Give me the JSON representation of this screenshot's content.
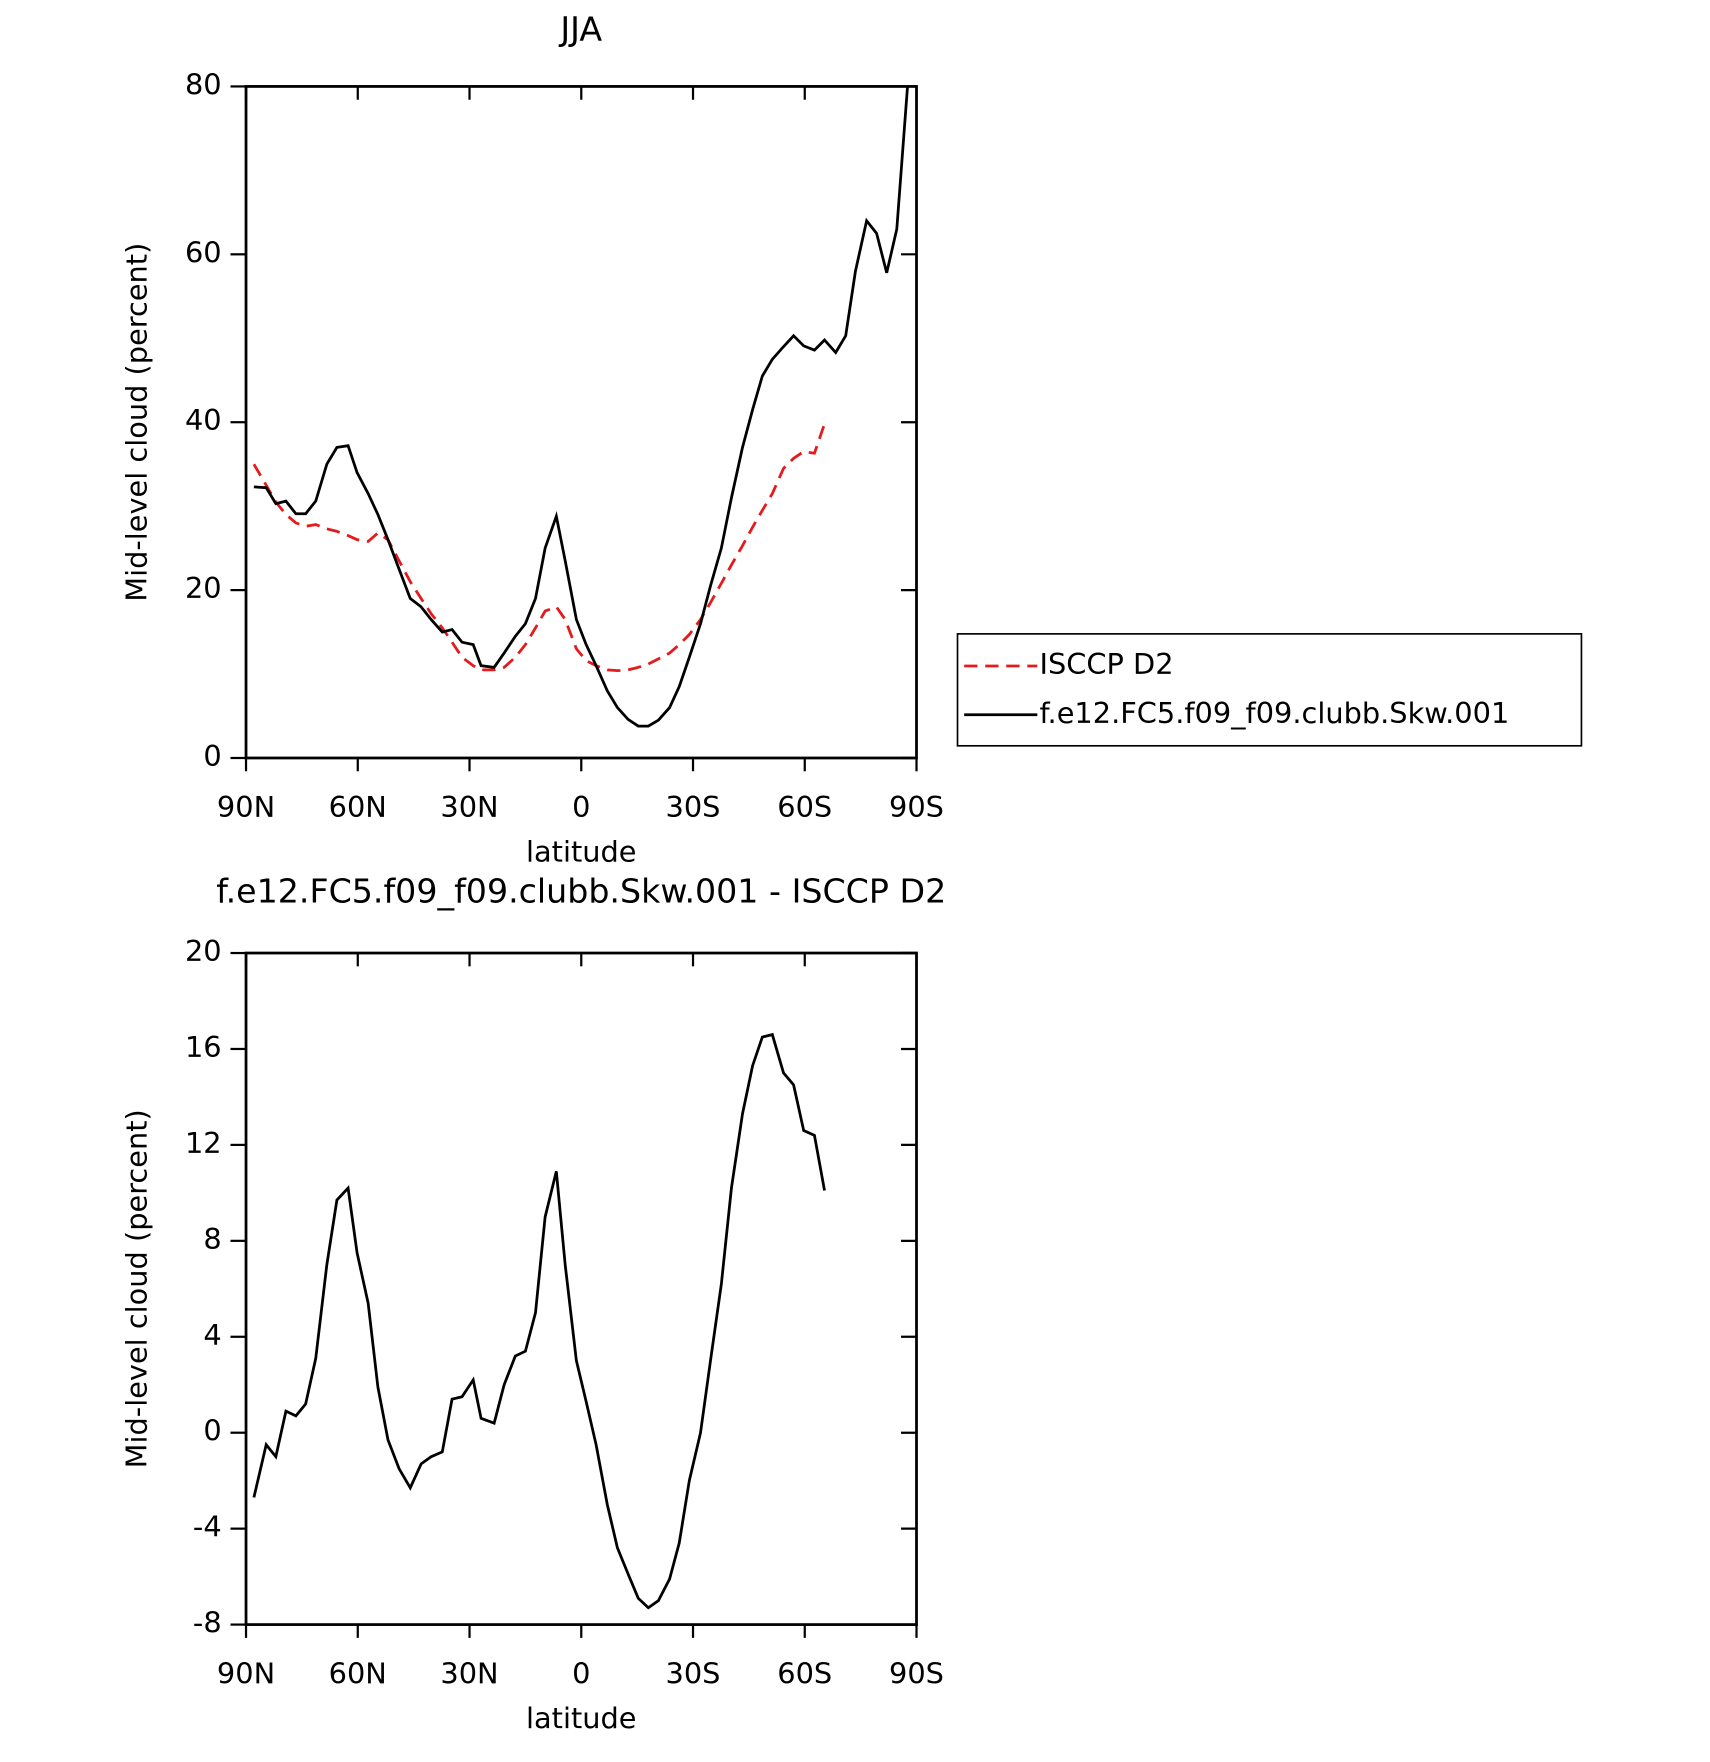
{
  "chart_data": [
    {
      "type": "line",
      "title": "JJA",
      "x_label": "latitude",
      "y_label": "Mid-level cloud (percent)",
      "x": [
        87.9,
        84.6,
        82.0,
        79.3,
        76.6,
        74.0,
        71.3,
        68.3,
        65.6,
        62.6,
        60.2,
        57.2,
        54.6,
        51.9,
        48.9,
        45.9,
        43.0,
        40.3,
        37.3,
        34.7,
        32.0,
        29.0,
        26.9,
        23.4,
        20.7,
        17.7,
        15.0,
        12.3,
        9.7,
        6.7,
        4.3,
        1.3,
        -1.3,
        -4.0,
        -7.0,
        -9.7,
        -12.6,
        -15.3,
        -18.0,
        -20.7,
        -23.7,
        -26.3,
        -29.0,
        -32.0,
        -34.7,
        -37.6,
        -40.3,
        -43.3,
        -46.0,
        -48.6,
        -51.3,
        -54.3,
        -57.0,
        -59.7,
        -62.6,
        -65.3,
        -68.3,
        -71.0,
        -73.6,
        -76.6,
        -79.3,
        -82.0,
        -84.7,
        -87.6
      ],
      "series": [
        {
          "name": "ISCCP D2",
          "color": "#e41a1c",
          "dashed": true,
          "values": [
            35,
            32.5,
            30.5,
            29,
            28,
            27.6,
            27.8,
            27.3,
            27,
            26.5,
            26,
            25.8,
            26.8,
            26,
            23.5,
            21,
            19,
            17.2,
            15.5,
            13.8,
            12,
            11,
            10.5,
            10.5,
            10.8,
            12,
            13.5,
            15.5,
            17.5,
            18,
            16.5,
            13,
            11.6,
            11,
            10.5,
            10.4,
            10.5,
            10.8,
            11.2,
            11.8,
            12.5,
            13.5,
            14.7,
            16.5,
            18.5,
            20.8,
            23,
            25.3,
            27.5,
            29.5,
            31.5,
            34.5,
            35.7,
            36.5,
            36.3,
            39.8,
            null,
            null,
            null,
            null,
            null,
            null,
            null,
            null
          ]
        },
        {
          "name": "f.e12.FC5.f09_f09.clubb.Skw.001",
          "color": "#000000",
          "dashed": false,
          "values": [
            32.3,
            32.2,
            30.3,
            30.6,
            29.1,
            29.1,
            30.6,
            35,
            37,
            37.2,
            34,
            31.5,
            29,
            26,
            22.5,
            19,
            18,
            16.5,
            15,
            15.3,
            13.8,
            13.5,
            11,
            10.8,
            12.5,
            14.5,
            16,
            19,
            25,
            28.8,
            23.5,
            16.5,
            13.5,
            11,
            8,
            6,
            4.6,
            3.8,
            3.8,
            4.5,
            6,
            8.5,
            12,
            16,
            20.5,
            25,
            31,
            37,
            41.5,
            45.5,
            47.5,
            49,
            50.3,
            49.1,
            48.6,
            49.8,
            48.3,
            50.3,
            58,
            64,
            62.5,
            57.8,
            63,
            80
          ]
        }
      ],
      "xlim": [
        90,
        -90
      ],
      "xticks": [
        {
          "value": 90,
          "label": "90N"
        },
        {
          "value": 60,
          "label": "60N"
        },
        {
          "value": 30,
          "label": "30N"
        },
        0,
        {
          "value": -30,
          "label": "30S"
        },
        {
          "value": -60,
          "label": "60S"
        },
        {
          "value": -90,
          "label": "90S"
        }
      ],
      "ylim": [
        0,
        80
      ],
      "yticks": [
        0,
        20,
        40,
        60,
        80
      ],
      "legend": "right"
    },
    {
      "type": "line",
      "title": "f.e12.FC5.f09_f09.clubb.Skw.001 - ISCCP D2",
      "x_label": "latitude",
      "y_label": "Mid-level cloud (percent)",
      "x": [
        87.9,
        84.6,
        82.0,
        79.3,
        76.6,
        74.0,
        71.3,
        68.3,
        65.6,
        62.6,
        60.2,
        57.2,
        54.6,
        51.9,
        48.9,
        45.9,
        43.0,
        40.3,
        37.3,
        34.7,
        32.0,
        29.0,
        26.9,
        23.4,
        20.7,
        17.7,
        15.0,
        12.3,
        9.7,
        6.7,
        4.3,
        1.3,
        -1.3,
        -4.0,
        -7.0,
        -9.7,
        -12.6,
        -15.3,
        -18.0,
        -20.7,
        -23.7,
        -26.3,
        -29.0,
        -32.0,
        -34.7,
        -37.6,
        -40.3,
        -43.3,
        -46.0,
        -48.6,
        -51.3,
        -54.3,
        -57.0,
        -59.7,
        -62.6,
        -65.3
      ],
      "values": [
        -2.7,
        -0.5,
        -1,
        0.9,
        0.7,
        1.2,
        3.1,
        7,
        9.7,
        10.2,
        7.5,
        5.4,
        1.9,
        -0.3,
        -1.5,
        -2.3,
        -1.3,
        -1,
        -0.8,
        1.4,
        1.5,
        2.2,
        0.6,
        0.4,
        2,
        3.2,
        3.4,
        5,
        9,
        10.9,
        7,
        3,
        1.3,
        -0.5,
        -3,
        -4.8,
        -5.9,
        -6.9,
        -7.3,
        -7,
        -6.1,
        -4.6,
        -2,
        0,
        3,
        6.2,
        10.2,
        13.3,
        15.3,
        16.5,
        16.6,
        15,
        14.5,
        12.6,
        12.4,
        10.1
      ],
      "color": "#000000",
      "xlim": [
        90,
        -90
      ],
      "xticks": [
        {
          "value": 90,
          "label": "90N"
        },
        {
          "value": 60,
          "label": "60N"
        },
        {
          "value": 30,
          "label": "30N"
        },
        0,
        {
          "value": -30,
          "label": "30S"
        },
        {
          "value": -60,
          "label": "60S"
        },
        {
          "value": -90,
          "label": "90S"
        }
      ],
      "ylim": [
        -8,
        20
      ],
      "yticks": [
        -8,
        -4,
        0,
        4,
        8,
        12,
        16,
        20
      ]
    }
  ]
}
